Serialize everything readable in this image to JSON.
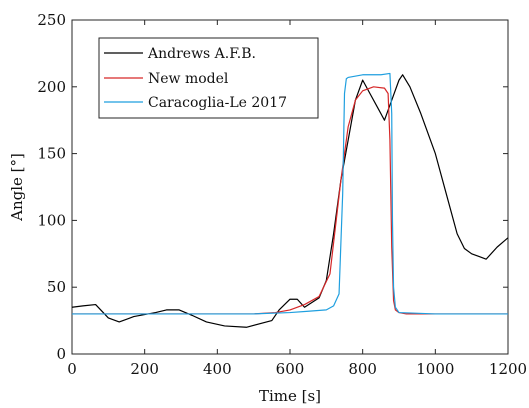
{
  "chart_data": {
    "type": "line",
    "title": "",
    "xlabel": "Time [s]",
    "ylabel": "Angle [°]",
    "xlim": [
      0,
      1200
    ],
    "ylim": [
      0,
      250
    ],
    "xticks": [
      0,
      200,
      400,
      600,
      800,
      1000,
      1200
    ],
    "yticks": [
      0,
      50,
      100,
      150,
      200,
      250
    ],
    "grid": false,
    "legend_position": "top-left",
    "series": [
      {
        "name": "Andrews A.F.B.",
        "color": "#000000",
        "x": [
          0,
          30,
          65,
          100,
          130,
          170,
          230,
          260,
          295,
          330,
          370,
          420,
          480,
          550,
          570,
          600,
          620,
          640,
          680,
          700,
          720,
          740,
          760,
          780,
          800,
          820,
          840,
          860,
          880,
          900,
          910,
          930,
          960,
          1000,
          1030,
          1060,
          1080,
          1100,
          1120,
          1140,
          1170,
          1200
        ],
        "y": [
          35,
          36,
          37,
          27,
          24,
          28,
          31,
          33,
          33,
          29,
          24,
          21,
          20,
          25,
          33,
          41,
          41,
          35,
          42,
          55,
          90,
          130,
          160,
          190,
          205,
          195,
          185,
          175,
          190,
          205,
          209,
          200,
          180,
          150,
          120,
          90,
          79,
          75,
          73,
          71,
          80,
          87
        ]
      },
      {
        "name": "New model",
        "color": "#d62728",
        "x": [
          0,
          100,
          200,
          300,
          400,
          500,
          560,
          600,
          640,
          680,
          710,
          740,
          760,
          780,
          800,
          830,
          860,
          870,
          875,
          880,
          885,
          890,
          900,
          920,
          1000,
          1100,
          1200
        ],
        "y": [
          30,
          30,
          30,
          30,
          30,
          30,
          31,
          33,
          37,
          43,
          60,
          130,
          170,
          190,
          197,
          200,
          199,
          195,
          160,
          80,
          40,
          33,
          31,
          30,
          30,
          30,
          30
        ]
      },
      {
        "name": "Caracoglia-Le 2017",
        "color": "#1f9fdf",
        "x": [
          0,
          100,
          200,
          300,
          400,
          500,
          600,
          650,
          700,
          720,
          735,
          745,
          750,
          755,
          760,
          800,
          850,
          875,
          880,
          882,
          885,
          890,
          900,
          1000,
          1100,
          1200
        ],
        "y": [
          30,
          30,
          30,
          30,
          30,
          30,
          31,
          32,
          33,
          36,
          45,
          120,
          195,
          206,
          207,
          209,
          209,
          210,
          180,
          100,
          50,
          35,
          31,
          30,
          30,
          30
        ]
      }
    ]
  }
}
